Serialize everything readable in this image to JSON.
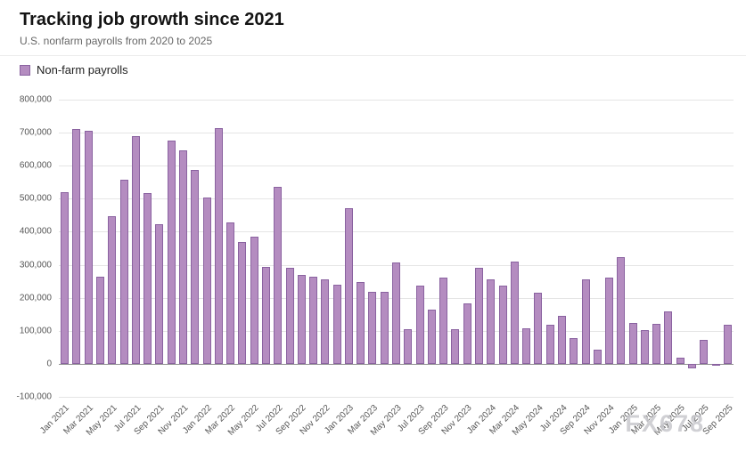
{
  "header": {
    "title": "Tracking job growth since 2021",
    "subtitle": "U.S. nonfarm payrolls from 2020 to 2025"
  },
  "legend": {
    "label": "Non-farm payrolls"
  },
  "watermark": {
    "text": "FX678"
  },
  "colors": {
    "bar_fill": "#b48cc0",
    "bar_border": "#8a62a0",
    "grid": "#e5e5e5",
    "zero_line": "#909090",
    "axis_text": "#555555"
  },
  "chart_data": {
    "type": "bar",
    "title": "Tracking job growth since 2021",
    "subtitle": "U.S. nonfarm payrolls from 2020 to 2025",
    "series_name": "Non-farm payrolls",
    "xlabel": "",
    "ylabel": "",
    "ylim": [
      -100000,
      800000
    ],
    "ytick_step": 100000,
    "xtick_every": 2,
    "grid": true,
    "legend_position": "top-left",
    "categories": [
      "Jan 2021",
      "Feb 2021",
      "Mar 2021",
      "Apr 2021",
      "May 2021",
      "Jun 2021",
      "Jul 2021",
      "Aug 2021",
      "Sep 2021",
      "Oct 2021",
      "Nov 2021",
      "Dec 2021",
      "Jan 2022",
      "Feb 2022",
      "Mar 2022",
      "Apr 2022",
      "May 2022",
      "Jun 2022",
      "Jul 2022",
      "Aug 2022",
      "Sep 2022",
      "Oct 2022",
      "Nov 2022",
      "Dec 2022",
      "Jan 2023",
      "Feb 2023",
      "Mar 2023",
      "Apr 2023",
      "May 2023",
      "Jun 2023",
      "Jul 2023",
      "Aug 2023",
      "Sep 2023",
      "Oct 2023",
      "Nov 2023",
      "Dec 2023",
      "Jan 2024",
      "Feb 2024",
      "Mar 2024",
      "Apr 2024",
      "May 2024",
      "Jun 2024",
      "Jul 2024",
      "Aug 2024",
      "Sep 2024",
      "Oct 2024",
      "Nov 2024",
      "Dec 2024",
      "Jan 2025",
      "Feb 2025",
      "Mar 2025",
      "Apr 2025",
      "May 2025",
      "Jun 2025",
      "Jul 2025",
      "Aug 2025",
      "Sep 2025"
    ],
    "values": [
      520000,
      710000,
      705000,
      263000,
      447000,
      557000,
      689000,
      517000,
      424000,
      677000,
      647000,
      588000,
      504000,
      714000,
      428000,
      368000,
      386000,
      293000,
      537000,
      292000,
      269000,
      263000,
      256000,
      239000,
      472000,
      248000,
      217000,
      217000,
      306000,
      105000,
      236000,
      165000,
      262000,
      105000,
      182000,
      290000,
      256000,
      236000,
      310000,
      108000,
      216000,
      118000,
      144000,
      78000,
      255000,
      44000,
      261000,
      323000,
      125000,
      102000,
      120000,
      158000,
      19000,
      -13000,
      73000,
      -4000,
      119000
    ]
  }
}
